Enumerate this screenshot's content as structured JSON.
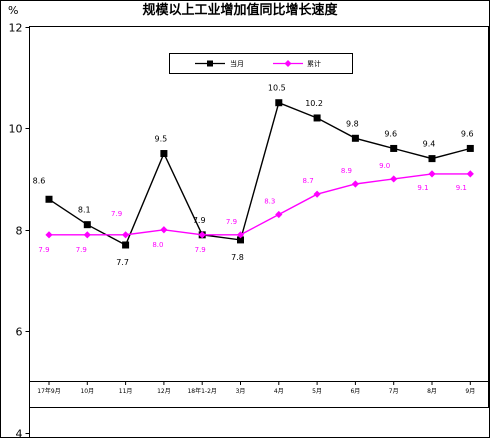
{
  "chart_data": {
    "type": "line",
    "title": "规模以上工业增加值同比增长速度",
    "ylabel": "%",
    "ylim": [
      4,
      12
    ],
    "yticks": [
      4,
      6,
      8,
      10,
      12
    ],
    "categories": [
      "17年9月",
      "10月",
      "11月",
      "12月",
      "18年1-2月",
      "3月",
      "4月",
      "5月",
      "6月",
      "7月",
      "8月",
      "9月"
    ],
    "series": [
      {
        "name": "当月",
        "color": "#000000",
        "marker": "square",
        "values": [
          8.6,
          8.1,
          7.7,
          9.5,
          7.9,
          7.8,
          10.5,
          10.2,
          9.8,
          9.6,
          9.4,
          9.6
        ],
        "labels": [
          "8.6",
          "8.1",
          "7.7",
          "9.5",
          "7.9",
          "7.8",
          "10.5",
          "10.2",
          "9.8",
          "9.6",
          "9.4",
          "9.6"
        ]
      },
      {
        "name": "累计",
        "color": "#ff00ff",
        "marker": "diamond",
        "values": [
          7.9,
          7.9,
          7.9,
          8.0,
          7.9,
          7.9,
          8.3,
          8.7,
          8.9,
          9.0,
          9.1,
          9.1
        ],
        "labels": [
          "7.9",
          "7.9",
          "7.9",
          "8.0",
          "7.9",
          "7.9",
          "8.3",
          "8.7",
          "8.9",
          "9.0",
          "9.1",
          "9.1"
        ]
      }
    ],
    "grid": false,
    "legend_position": "top-right"
  }
}
